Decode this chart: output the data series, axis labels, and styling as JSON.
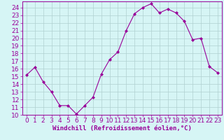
{
  "x": [
    0,
    1,
    2,
    3,
    4,
    5,
    6,
    7,
    8,
    9,
    10,
    11,
    12,
    13,
    14,
    15,
    16,
    17,
    18,
    19,
    20,
    21,
    22,
    23
  ],
  "y": [
    15.2,
    16.2,
    14.3,
    13.0,
    11.2,
    11.2,
    10.1,
    11.2,
    12.3,
    15.3,
    17.2,
    18.2,
    21.0,
    23.2,
    24.0,
    24.5,
    23.3,
    23.8,
    23.3,
    22.2,
    19.8,
    20.0,
    16.3,
    15.5
  ],
  "line_color": "#990099",
  "marker": "D",
  "marker_size": 2,
  "bg_color": "#d6f5f5",
  "grid_color": "#b0d0d0",
  "xlabel": "Windchill (Refroidissement éolien,°C)",
  "ylim": [
    10,
    24.8
  ],
  "yticks": [
    10,
    11,
    12,
    13,
    14,
    15,
    16,
    17,
    18,
    19,
    20,
    21,
    22,
    23,
    24
  ],
  "xticks": [
    0,
    1,
    2,
    3,
    4,
    5,
    6,
    7,
    8,
    9,
    10,
    11,
    12,
    13,
    14,
    15,
    16,
    17,
    18,
    19,
    20,
    21,
    22,
    23
  ],
  "tick_color": "#990099",
  "label_color": "#990099",
  "axis_color": "#990099",
  "font_size": 6.5
}
